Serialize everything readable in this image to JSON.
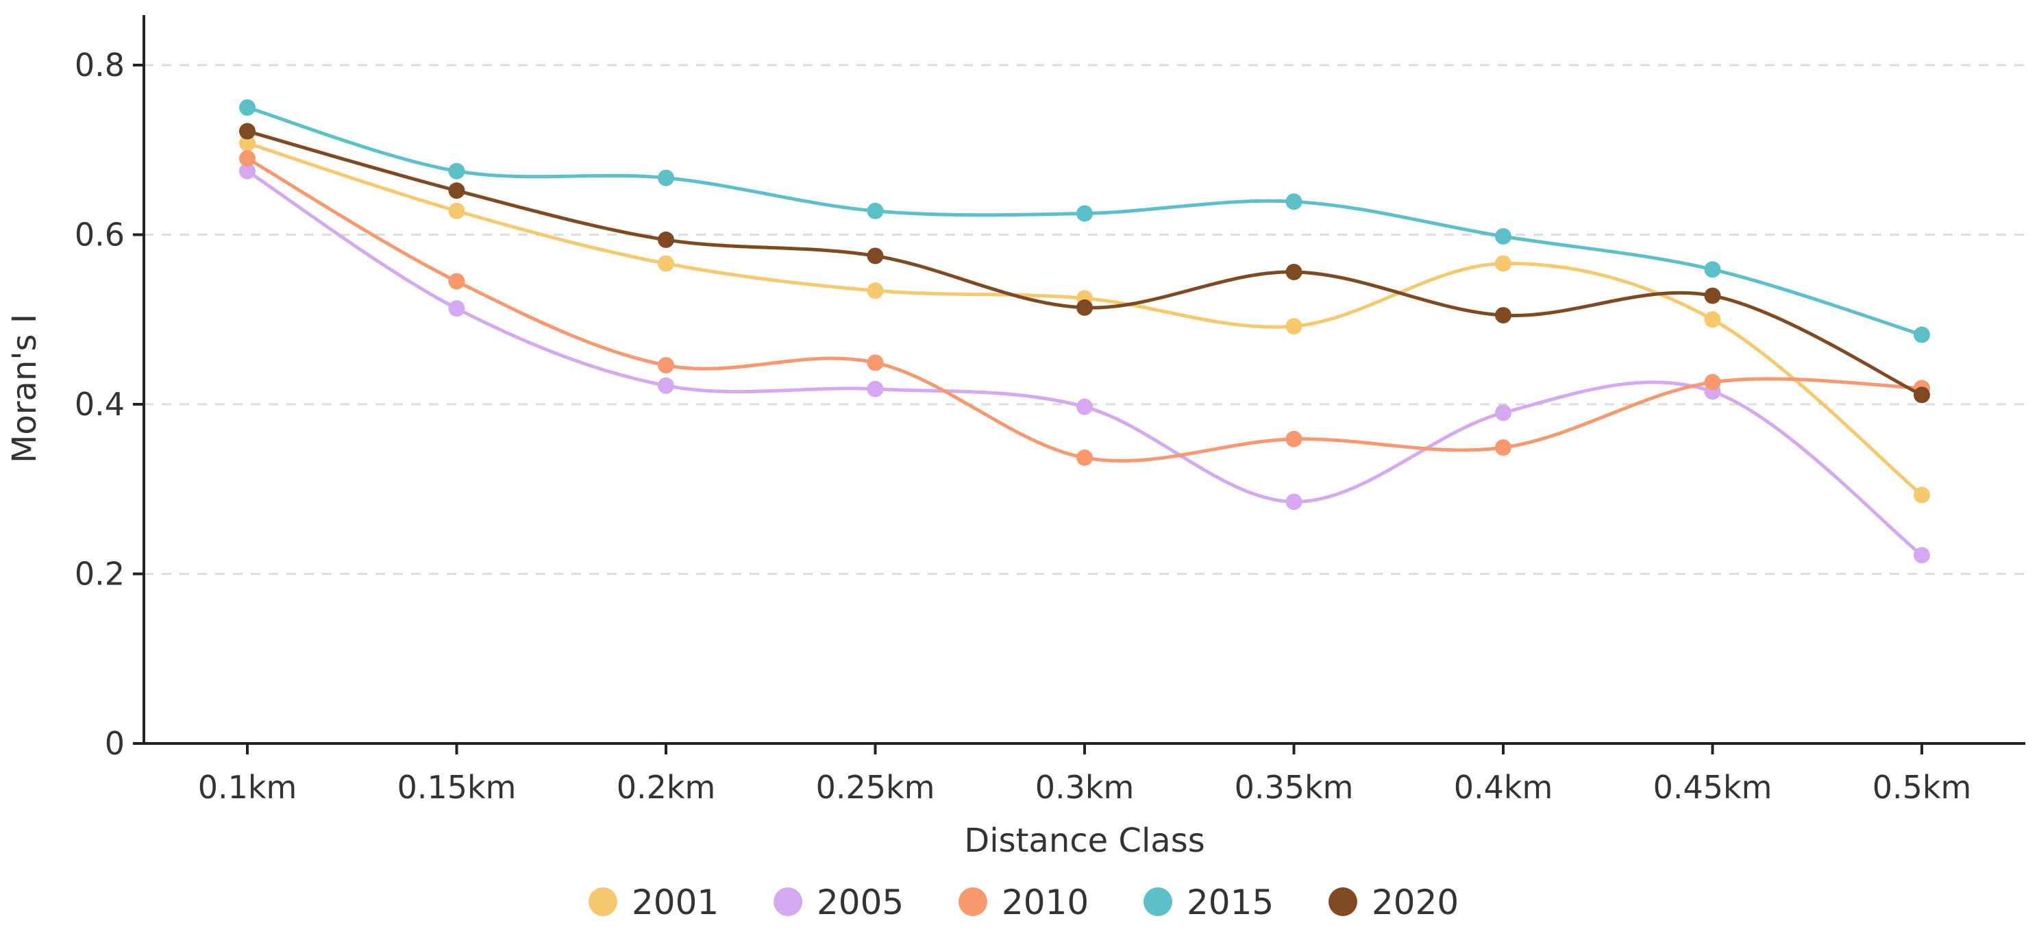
{
  "chart_data": {
    "type": "line",
    "title": "",
    "xlabel": "Distance Class",
    "ylabel": "Moran's I",
    "categories": [
      "0.1km",
      "0.15km",
      "0.2km",
      "0.25km",
      "0.3km",
      "0.35km",
      "0.4km",
      "0.45km",
      "0.5km"
    ],
    "ylim": [
      0,
      0.8
    ],
    "yticks": [
      0,
      0.2,
      0.4,
      0.6,
      0.8
    ],
    "ytick_labels": [
      "0",
      "0.2",
      "0.4",
      "0.6",
      "0.8"
    ],
    "grid": "horizontal dashed",
    "legend_position": "bottom",
    "series": [
      {
        "name": "2001",
        "color": "#F6C96E",
        "values": [
          0.708,
          0.628,
          0.566,
          0.534,
          0.525,
          0.492,
          0.566,
          0.5,
          0.293
        ]
      },
      {
        "name": "2005",
        "color": "#D6A8F2",
        "values": [
          0.675,
          0.513,
          0.422,
          0.418,
          0.397,
          0.285,
          0.39,
          0.415,
          0.222
        ]
      },
      {
        "name": "2010",
        "color": "#F7986F",
        "values": [
          0.69,
          0.545,
          0.446,
          0.449,
          0.337,
          0.359,
          0.349,
          0.426,
          0.419
        ]
      },
      {
        "name": "2015",
        "color": "#5BC0C9",
        "values": [
          0.75,
          0.675,
          0.667,
          0.628,
          0.625,
          0.639,
          0.598,
          0.559,
          0.482
        ]
      },
      {
        "name": "2020",
        "color": "#7F4A22",
        "values": [
          0.722,
          0.652,
          0.594,
          0.575,
          0.514,
          0.556,
          0.505,
          0.528,
          0.411
        ]
      }
    ]
  }
}
